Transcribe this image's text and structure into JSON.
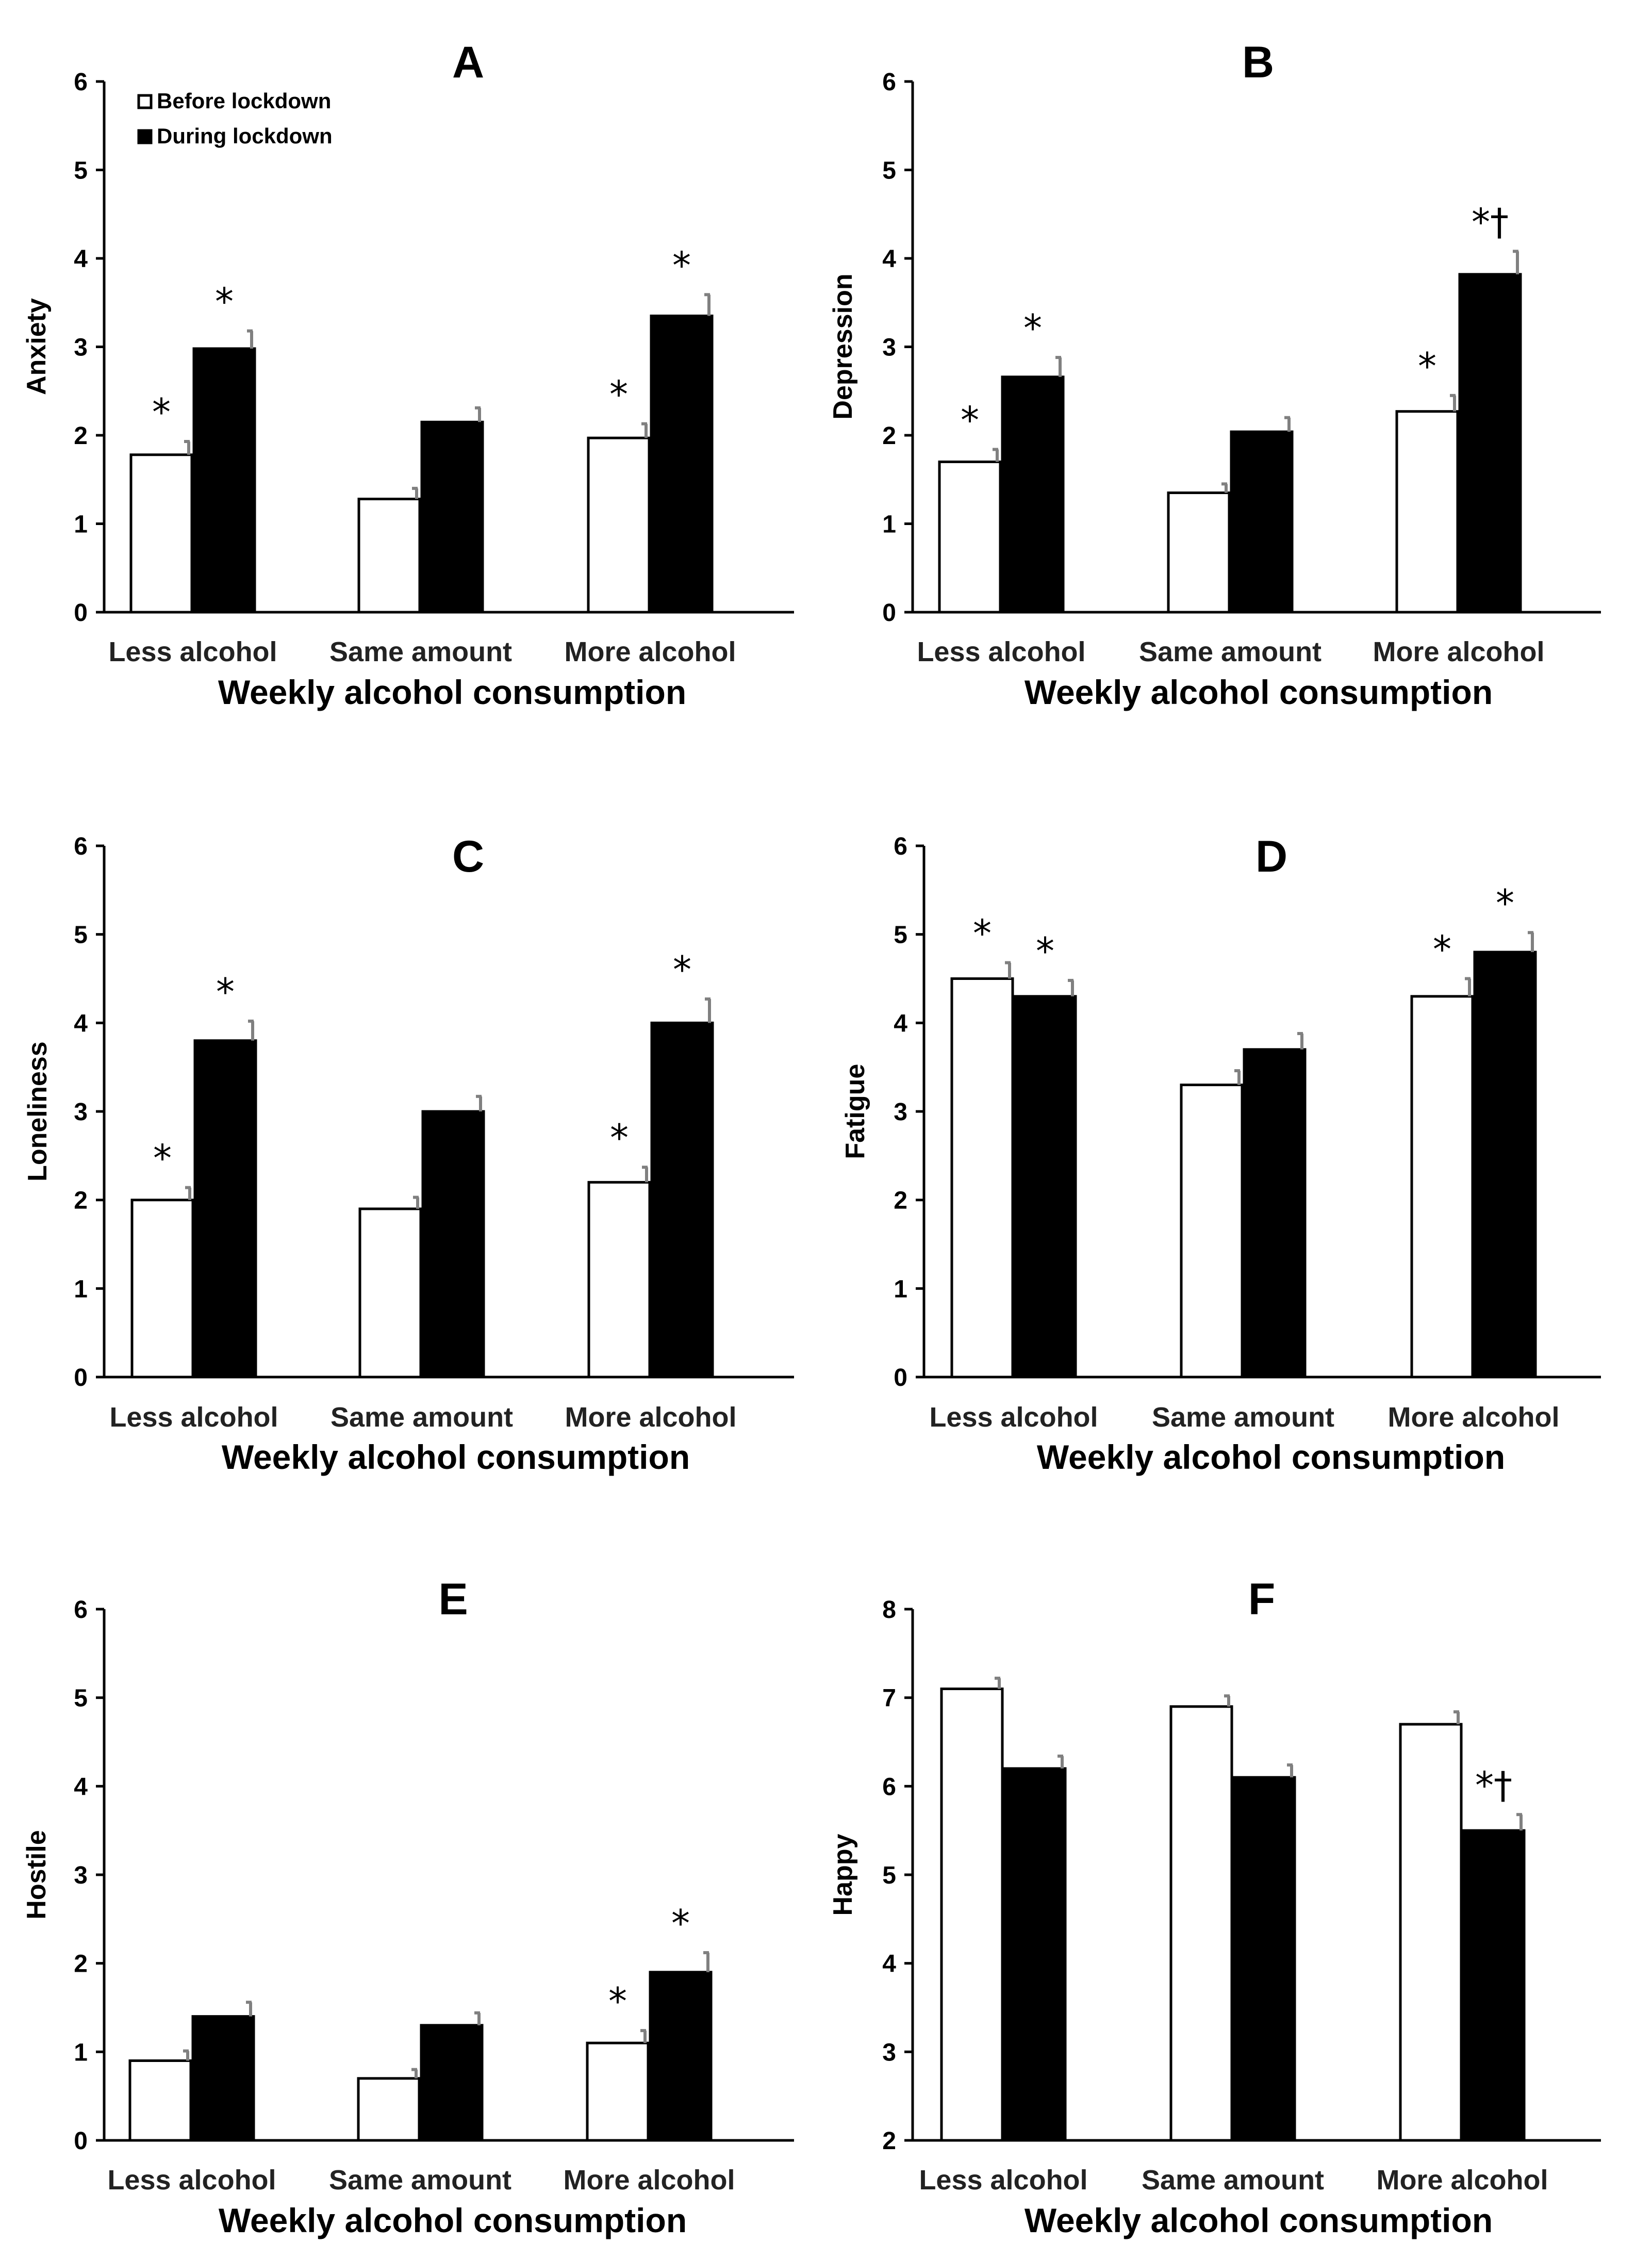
{
  "colors": {
    "before": "#ffffff",
    "during": "#000000",
    "error_bar": "#808080",
    "axis": "#000000"
  },
  "legend": {
    "before_label": "Before lockdown",
    "during_label": "During lockdown",
    "placement": "top-left of panel A"
  },
  "chart_data": [
    {
      "type": "bar",
      "panel": "A",
      "categories": [
        "Less alcohol",
        "Same amount",
        "More alcohol"
      ],
      "xlabel": "Weekly alcohol consumption",
      "ylabel": "Anxiety",
      "ylim": [
        0,
        6
      ],
      "yticks": [
        0,
        1,
        2,
        3,
        4,
        5,
        6
      ],
      "series": [
        {
          "name": "Before lockdown",
          "values": [
            1.78,
            1.28,
            1.97
          ],
          "errors": [
            0.15,
            0.12,
            0.16
          ],
          "markers": [
            "*",
            "",
            "*"
          ]
        },
        {
          "name": "During lockdown",
          "values": [
            2.98,
            2.15,
            3.35
          ],
          "errors": [
            0.2,
            0.16,
            0.24
          ],
          "markers": [
            "*",
            "",
            "*"
          ]
        }
      ]
    },
    {
      "type": "bar",
      "panel": "B",
      "categories": [
        "Less alcohol",
        "Same amount",
        "More alcohol"
      ],
      "xlabel": "Weekly alcohol consumption",
      "ylabel": "Depression",
      "ylim": [
        0,
        6
      ],
      "yticks": [
        0,
        1,
        2,
        3,
        4,
        5,
        6
      ],
      "series": [
        {
          "name": "Before lockdown",
          "values": [
            1.7,
            1.35,
            2.27
          ],
          "errors": [
            0.14,
            0.1,
            0.18
          ],
          "markers": [
            "*",
            "",
            "*"
          ]
        },
        {
          "name": "During lockdown",
          "values": [
            2.66,
            2.04,
            3.82
          ],
          "errors": [
            0.22,
            0.16,
            0.26
          ],
          "markers": [
            "*",
            "",
            "*†"
          ]
        }
      ]
    },
    {
      "type": "bar",
      "panel": "C",
      "categories": [
        "Less alcohol",
        "Same amount",
        "More alcohol"
      ],
      "xlabel": "Weekly alcohol consumption",
      "ylabel": "Loneliness",
      "ylim": [
        0,
        6
      ],
      "yticks": [
        0,
        1,
        2,
        3,
        4,
        5,
        6
      ],
      "series": [
        {
          "name": "Before lockdown",
          "values": [
            2.0,
            1.9,
            2.2
          ],
          "errors": [
            0.14,
            0.13,
            0.17
          ],
          "markers": [
            "*",
            "",
            "*"
          ]
        },
        {
          "name": "During lockdown",
          "values": [
            3.8,
            3.0,
            4.0
          ],
          "errors": [
            0.22,
            0.17,
            0.27
          ],
          "markers": [
            "*",
            "",
            "*"
          ]
        }
      ]
    },
    {
      "type": "bar",
      "panel": "D",
      "categories": [
        "Less alcohol",
        "Same amount",
        "More alcohol"
      ],
      "xlabel": "Weekly alcohol consumption",
      "ylabel": "Fatigue",
      "ylim": [
        0,
        6
      ],
      "yticks": [
        0,
        1,
        2,
        3,
        4,
        5,
        6
      ],
      "series": [
        {
          "name": "Before lockdown",
          "values": [
            4.5,
            3.3,
            4.3
          ],
          "errors": [
            0.18,
            0.16,
            0.2
          ],
          "markers": [
            "*",
            "",
            "*"
          ]
        },
        {
          "name": "During lockdown",
          "values": [
            4.3,
            3.7,
            4.8
          ],
          "errors": [
            0.18,
            0.18,
            0.22
          ],
          "markers": [
            "*",
            "",
            "*"
          ]
        }
      ]
    },
    {
      "type": "bar",
      "panel": "E",
      "categories": [
        "Less alcohol",
        "Same amount",
        "More alcohol"
      ],
      "xlabel": "Weekly alcohol consumption",
      "ylabel": "Hostile",
      "ylim": [
        0,
        6
      ],
      "yticks": [
        0,
        1,
        2,
        3,
        4,
        5,
        6
      ],
      "series": [
        {
          "name": "Before lockdown",
          "values": [
            0.9,
            0.7,
            1.1
          ],
          "errors": [
            0.11,
            0.1,
            0.14
          ],
          "markers": [
            "",
            "",
            "*"
          ]
        },
        {
          "name": "During lockdown",
          "values": [
            1.4,
            1.3,
            1.9
          ],
          "errors": [
            0.16,
            0.14,
            0.22
          ],
          "markers": [
            "",
            "",
            "*"
          ]
        }
      ]
    },
    {
      "type": "bar",
      "panel": "F",
      "categories": [
        "Less alcohol",
        "Same amount",
        "More alcohol"
      ],
      "xlabel": "Weekly alcohol consumption",
      "ylabel": "Happy",
      "ylim": [
        2,
        8
      ],
      "yticks": [
        2,
        3,
        4,
        5,
        6,
        7,
        8
      ],
      "series": [
        {
          "name": "Before lockdown",
          "values": [
            7.1,
            6.9,
            6.7
          ],
          "errors": [
            0.12,
            0.12,
            0.14
          ],
          "markers": [
            "",
            "",
            ""
          ]
        },
        {
          "name": "During lockdown",
          "values": [
            6.2,
            6.1,
            5.5
          ],
          "errors": [
            0.14,
            0.14,
            0.18
          ],
          "markers": [
            "",
            "",
            "*†"
          ]
        }
      ]
    }
  ]
}
